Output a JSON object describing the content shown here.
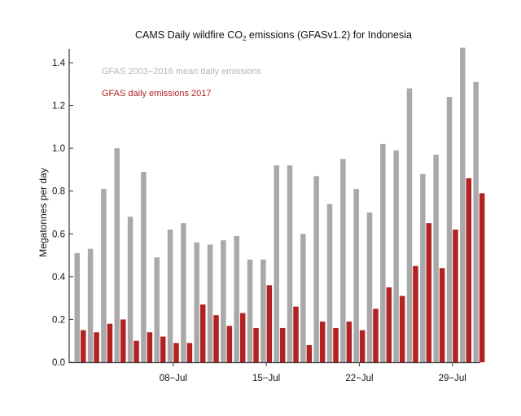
{
  "chart_data": {
    "type": "bar",
    "title_prefix": "CAMS Daily wildfire CO",
    "title_sub": "2",
    "title_suffix": " emissions (GFASv1.2) for Indonesia",
    "ylabel": "Megatonnes per day",
    "xlabel": "",
    "ylim": [
      0,
      1.46
    ],
    "yticks": [
      "0.0",
      "0.2",
      "0.4",
      "0.6",
      "0.8",
      "1.0",
      "1.2",
      "1.4"
    ],
    "xticks": [
      {
        "day": 8,
        "label": "08−Jul"
      },
      {
        "day": 15,
        "label": "15−Jul"
      },
      {
        "day": 22,
        "label": "22−Jul"
      },
      {
        "day": 29,
        "label": "29−Jul"
      }
    ],
    "categories": [
      1,
      2,
      3,
      4,
      5,
      6,
      7,
      8,
      9,
      10,
      11,
      12,
      13,
      14,
      15,
      16,
      17,
      18,
      19,
      20,
      21,
      22,
      23,
      24,
      25,
      26,
      27,
      28,
      29,
      30,
      31
    ],
    "legend_placement": "top-left",
    "grid": false,
    "series": [
      {
        "name": "GFAS 2003−2016 mean daily emissions",
        "color": "#a9a9a9",
        "values": [
          0.51,
          0.53,
          0.81,
          1.0,
          0.68,
          0.89,
          0.49,
          0.62,
          0.65,
          0.56,
          0.55,
          0.57,
          0.59,
          0.48,
          0.48,
          0.92,
          0.92,
          0.6,
          0.87,
          0.74,
          0.95,
          0.81,
          0.7,
          1.02,
          0.99,
          1.28,
          0.88,
          0.97,
          1.24,
          1.47,
          1.31
        ]
      },
      {
        "name": "GFAS daily emissions 2017",
        "color": "#b22222",
        "values": [
          0.15,
          0.14,
          0.18,
          0.2,
          0.1,
          0.14,
          0.12,
          0.09,
          0.09,
          0.27,
          0.22,
          0.17,
          0.23,
          0.16,
          0.36,
          0.16,
          0.26,
          0.08,
          0.19,
          0.16,
          0.19,
          0.15,
          0.25,
          0.35,
          0.31,
          0.45,
          0.65,
          0.44,
          0.62,
          0.86,
          0.79
        ]
      }
    ]
  }
}
